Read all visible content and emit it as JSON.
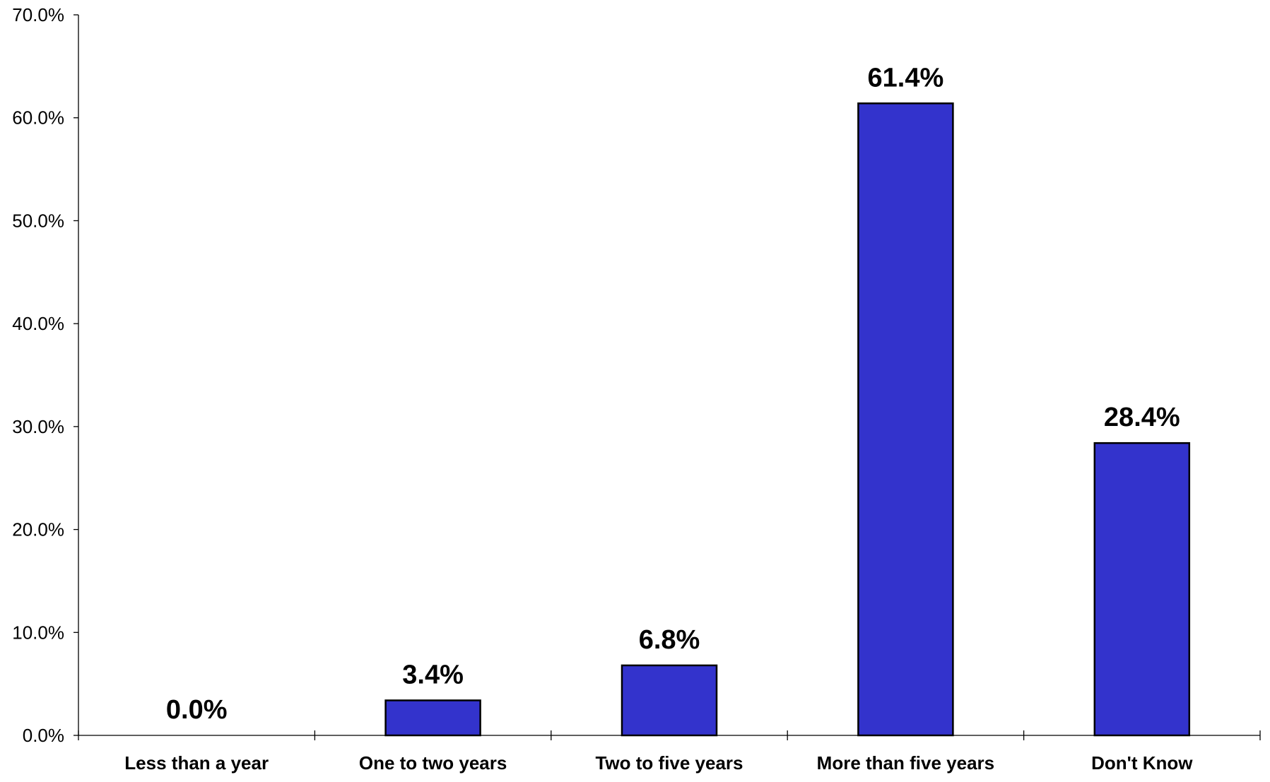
{
  "chart_data": {
    "type": "bar",
    "title": "",
    "xlabel": "",
    "ylabel": "",
    "categories": [
      "Less than a year",
      "One to two years",
      "Two to five years",
      "More than five years",
      "Don't Know"
    ],
    "values": [
      0.0,
      3.4,
      6.8,
      61.4,
      28.4
    ],
    "data_labels": [
      "0.0%",
      "3.4%",
      "6.8%",
      "61.4%",
      "28.4%"
    ],
    "ylim": [
      0,
      70
    ],
    "yticks": [
      0,
      10,
      20,
      30,
      40,
      50,
      60,
      70
    ],
    "ytick_labels": [
      "0.0%",
      "10.0%",
      "20.0%",
      "30.0%",
      "40.0%",
      "50.0%",
      "60.0%",
      "70.0%"
    ],
    "grid": false,
    "legend": "none",
    "colors": {
      "bar_fill": "#3333cc",
      "bar_stroke": "#000000",
      "axis": "#000000"
    }
  }
}
